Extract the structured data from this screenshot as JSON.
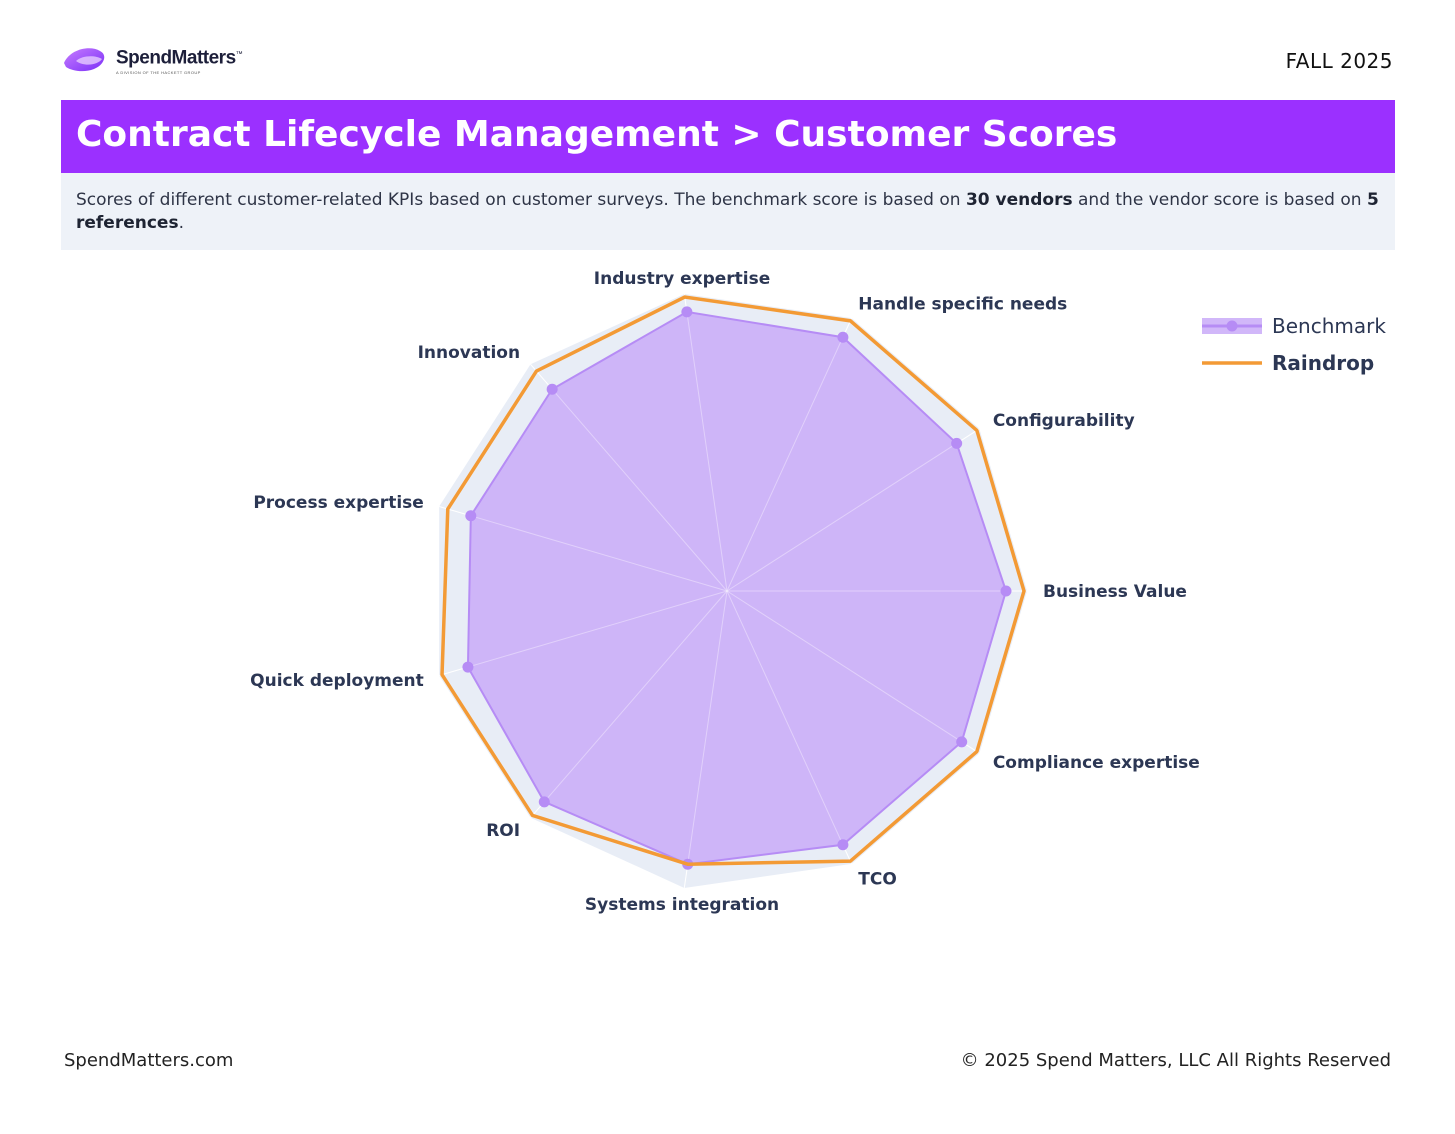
{
  "header": {
    "logo_name": "SpendMatters",
    "logo_tagline": "A DIVISION OF THE HACKETT GROUP",
    "season": "FALL 2025"
  },
  "title": "Contract Lifecycle Management > Customer Scores",
  "description": {
    "part1": "Scores of different customer-related KPIs based on customer surveys. The benchmark score is based on ",
    "bold1": "30 vendors",
    "part2": " and the vendor score is based on ",
    "bold2": "5 references",
    "part3": "."
  },
  "chart_data": {
    "type": "radar",
    "categories": [
      "Business Value",
      "Configurability",
      "Handle specific needs",
      "Industry expertise",
      "Innovation",
      "Process expertise",
      "Quick deployment",
      "ROI",
      "Systems integration",
      "TCO",
      "Compliance expertise"
    ],
    "series": [
      {
        "name": "Benchmark",
        "color": "#b68cf5",
        "fill": "#c9aaf8",
        "values": [
          0.93,
          0.91,
          0.93,
          0.94,
          0.89,
          0.89,
          0.9,
          0.93,
          0.92,
          0.93,
          0.93
        ]
      },
      {
        "name": "Raindrop",
        "color": "#f39a35",
        "values": [
          0.99,
          0.99,
          0.99,
          0.99,
          0.97,
          0.97,
          0.99,
          0.99,
          0.92,
          0.99,
          0.99
        ]
      }
    ],
    "range": [
      0,
      1
    ],
    "legend_position": "top-right"
  },
  "footer": {
    "left": "SpendMatters.com",
    "right": "© 2025 Spend Matters, LLC All Rights Reserved"
  }
}
